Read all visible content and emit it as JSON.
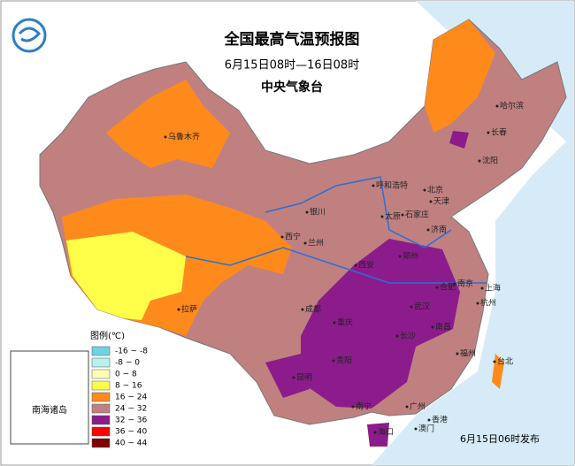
{
  "header": {
    "title": "全国最高气温预报图",
    "subtitle": "6月15日08时—16日08时",
    "issuer": "中央气象台"
  },
  "legend": {
    "title": "图例(℃)",
    "items": [
      {
        "label": "-16 ~ -8",
        "color": "#6fd3e3"
      },
      {
        "label": "-8 ~ 0",
        "color": "#b8f2ee"
      },
      {
        "label": "0 ~ 8",
        "color": "#ffffb4"
      },
      {
        "label": "8 ~ 16",
        "color": "#ffff4a"
      },
      {
        "label": "16 ~ 24",
        "color": "#ff8a1c"
      },
      {
        "label": "24 ~ 32",
        "color": "#c08080"
      },
      {
        "label": "32 ~ 36",
        "color": "#8c1c8c"
      },
      {
        "label": "36 ~ 40",
        "color": "#ff0000"
      },
      {
        "label": "40 ~ 44",
        "color": "#800000"
      }
    ]
  },
  "cities": [
    "乌鲁木齐",
    "哈尔滨",
    "长春",
    "沈阳",
    "呼和浩特",
    "北京",
    "天津",
    "银川",
    "太原",
    "石家庄",
    "济南",
    "西宁",
    "兰州",
    "西安",
    "郑州",
    "合肥",
    "南京",
    "上海",
    "拉萨",
    "成都",
    "武汉",
    "杭州",
    "重庆",
    "长沙",
    "南昌",
    "贵阳",
    "福州",
    "台北",
    "昆明",
    "南宁",
    "广州",
    "香港",
    "澳门",
    "海口"
  ],
  "inset_label": "南海诸岛",
  "footer": "6月15日06时发布"
}
